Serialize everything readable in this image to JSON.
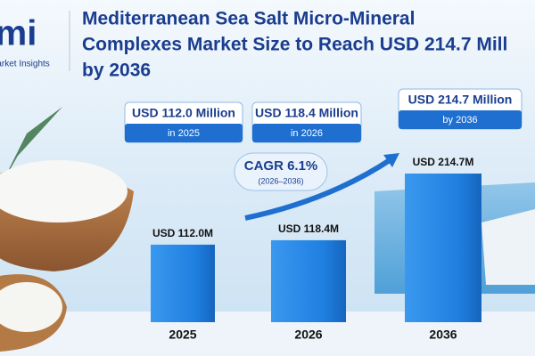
{
  "chart_data": {
    "type": "bar",
    "logo": "mi",
    "logo_caption": "Market Insights",
    "title_lines": [
      "Mediterranean Sea Salt Micro-Mineral",
      "Complexes Market Size to Reach USD 214.7 Mill",
      "by 2036"
    ],
    "categories": [
      "2025",
      "2026",
      "2036"
    ],
    "values": [
      112.0,
      118.4,
      214.7
    ],
    "value_labels": [
      "USD 112.0M",
      "USD 118.4M",
      "USD 214.7M"
    ],
    "color": "#1f7fe0",
    "callouts": [
      {
        "title": "USD 112.0 Million",
        "subtitle": "in 2025"
      },
      {
        "title": "USD 118.4 Million",
        "subtitle": "in 2026"
      },
      {
        "title": "USD 214.7 Million",
        "subtitle": "by 2036"
      }
    ],
    "cagr": {
      "label": "CAGR 6.1%",
      "period": "(2026–2036)"
    }
  }
}
